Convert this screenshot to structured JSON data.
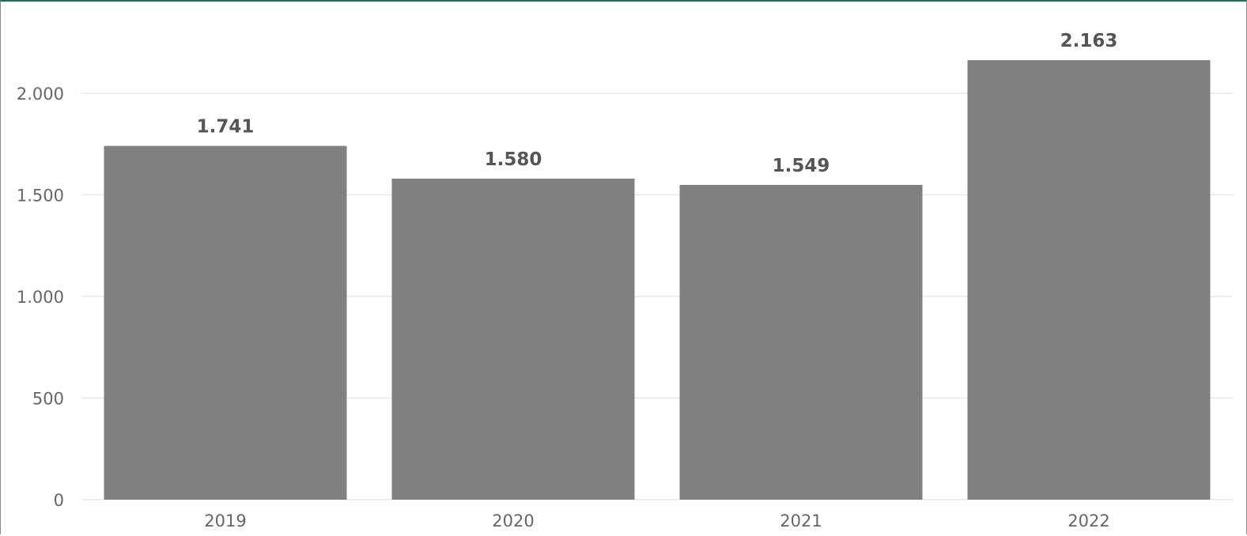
{
  "chart_data": {
    "type": "bar",
    "categories": [
      "2019",
      "2020",
      "2021",
      "2022"
    ],
    "values": [
      1741,
      1580,
      1549,
      2163
    ],
    "value_labels": [
      "1.741",
      "1.580",
      "1.549",
      "2.163"
    ],
    "y_ticks": [
      0,
      500,
      1000,
      1500,
      2000
    ],
    "y_tick_labels": [
      "0",
      "500",
      "1.000",
      "1.500",
      "2.000"
    ],
    "ylim": [
      0,
      2000
    ],
    "grid": true,
    "bar_color": "#808080",
    "title": "",
    "xlabel": "",
    "ylabel": ""
  }
}
